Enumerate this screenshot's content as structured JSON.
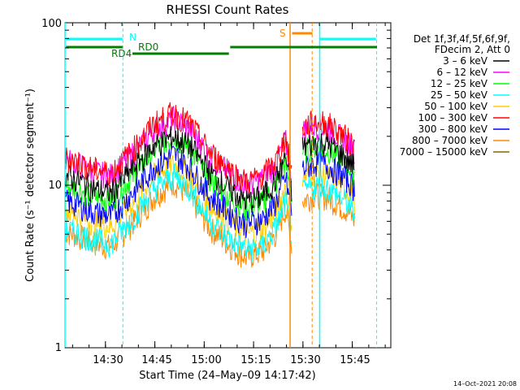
{
  "chart_data": {
    "type": "line",
    "title": "RHESSI Count Rates",
    "xlabel": "Start Time (24–May–09 14:17:42)",
    "ylabel": "Count Rate (s⁻¹ detector segment⁻¹)",
    "yscale": "log",
    "ylim": [
      1,
      100
    ],
    "xlim_minutes": [
      0,
      99
    ],
    "x_ticks": [
      {
        "label": "14:30",
        "t": 12.3
      },
      {
        "label": "14:45",
        "t": 27.3
      },
      {
        "label": "15:00",
        "t": 42.3
      },
      {
        "label": "15:15",
        "t": 57.3
      },
      {
        "label": "15:30",
        "t": 72.3
      },
      {
        "label": "15:45",
        "t": 87.3
      }
    ],
    "y_ticks": [
      {
        "label": "1",
        "v": 1
      },
      {
        "label": "10",
        "v": 10
      },
      {
        "label": "100",
        "v": 100
      }
    ],
    "legend_header": [
      "Det 1f,3f,4f,5f,6f,9f,",
      "FDecim 2, Att 0"
    ],
    "legend_placement": "right",
    "series": [
      {
        "name": "3 – 6 keV",
        "color": "#000000",
        "base": [
          11.5,
          10.8,
          9.5,
          9.0,
          13,
          17.5,
          20,
          17.5,
          12,
          9.5,
          8.0,
          8.5,
          10.8,
          15.0,
          9.0,
          null,
          null,
          17.0,
          18.5,
          18.0,
          15.0,
          13.0
        ]
      },
      {
        "name": "6 – 12 keV",
        "color": "#ff00ff",
        "base": [
          14.5,
          13.5,
          12.0,
          11.5,
          16,
          22,
          26,
          22,
          15,
          12,
          10.0,
          11.0,
          13.5,
          19.0,
          11.0,
          null,
          null,
          21.5,
          23.5,
          22.5,
          19.0,
          16.5
        ]
      },
      {
        "name": "12 – 25 keV",
        "color": "#00ff00",
        "base": [
          10.0,
          9.5,
          8.5,
          8.2,
          11.5,
          16.5,
          20,
          16.5,
          11,
          8.5,
          7.2,
          7.8,
          9.8,
          14.0,
          8.0,
          null,
          null,
          16.0,
          17.5,
          16.5,
          14.0,
          12.0
        ]
      },
      {
        "name": "25 – 50 keV",
        "color": "#00ffff",
        "base": [
          5.4,
          5.1,
          4.6,
          4.4,
          6.5,
          9.5,
          11.5,
          9.5,
          6.0,
          4.7,
          4.0,
          4.2,
          5.5,
          8.0,
          4.6,
          null,
          null,
          9.0,
          10.0,
          9.5,
          8.0,
          6.8
        ]
      },
      {
        "name": "50 – 100 keV",
        "color": "#ffcc00",
        "base": [
          7.0,
          6.6,
          5.9,
          5.6,
          8.0,
          11.5,
          13.5,
          11.5,
          7.5,
          5.9,
          5.0,
          5.3,
          6.8,
          9.8,
          5.8,
          null,
          null,
          11.0,
          12.0,
          11.5,
          9.8,
          8.4
        ]
      },
      {
        "name": "100 – 300 keV",
        "color": "#ff0000",
        "base": [
          15.0,
          14.0,
          12.5,
          12.0,
          17,
          24,
          28,
          24,
          16,
          12.5,
          10.5,
          11.5,
          14.0,
          20.0,
          11.5,
          null,
          null,
          22.5,
          25.0,
          24.0,
          20.0,
          17.5
        ]
      },
      {
        "name": "300 – 800 keV",
        "color": "#0000ff",
        "base": [
          8.0,
          7.6,
          6.8,
          6.5,
          9.2,
          13.0,
          15.5,
          13.0,
          8.6,
          6.8,
          5.8,
          6.2,
          7.8,
          11.2,
          6.6,
          null,
          null,
          12.5,
          13.8,
          13.2,
          11.2,
          9.6
        ]
      },
      {
        "name": "800 – 7000 keV",
        "color": "#ff8800",
        "base": [
          5.2,
          4.9,
          4.4,
          4.2,
          6.0,
          8.5,
          10.5,
          8.5,
          5.5,
          4.3,
          3.6,
          3.9,
          5.0,
          7.2,
          4.2,
          null,
          null,
          8.0,
          8.8,
          8.4,
          7.2,
          6.1
        ]
      },
      {
        "name": "7000 – 15000 keV",
        "color": "#886600",
        "base": []
      }
    ],
    "series_times": [
      0,
      4,
      9,
      14,
      21,
      27,
      33,
      38,
      44,
      50,
      55,
      60,
      64,
      67,
      69,
      70,
      71,
      72,
      76,
      80,
      85,
      88
    ],
    "annotations": [
      {
        "text": "N",
        "color": "#00ffff"
      },
      {
        "text": "RD0",
        "color": "#008000"
      },
      {
        "text": "RD4",
        "color": "#008000"
      },
      {
        "text": "S",
        "color": "#ff8800"
      }
    ],
    "grid": false
  },
  "timestamp": "14–Oct–2021 20:08"
}
